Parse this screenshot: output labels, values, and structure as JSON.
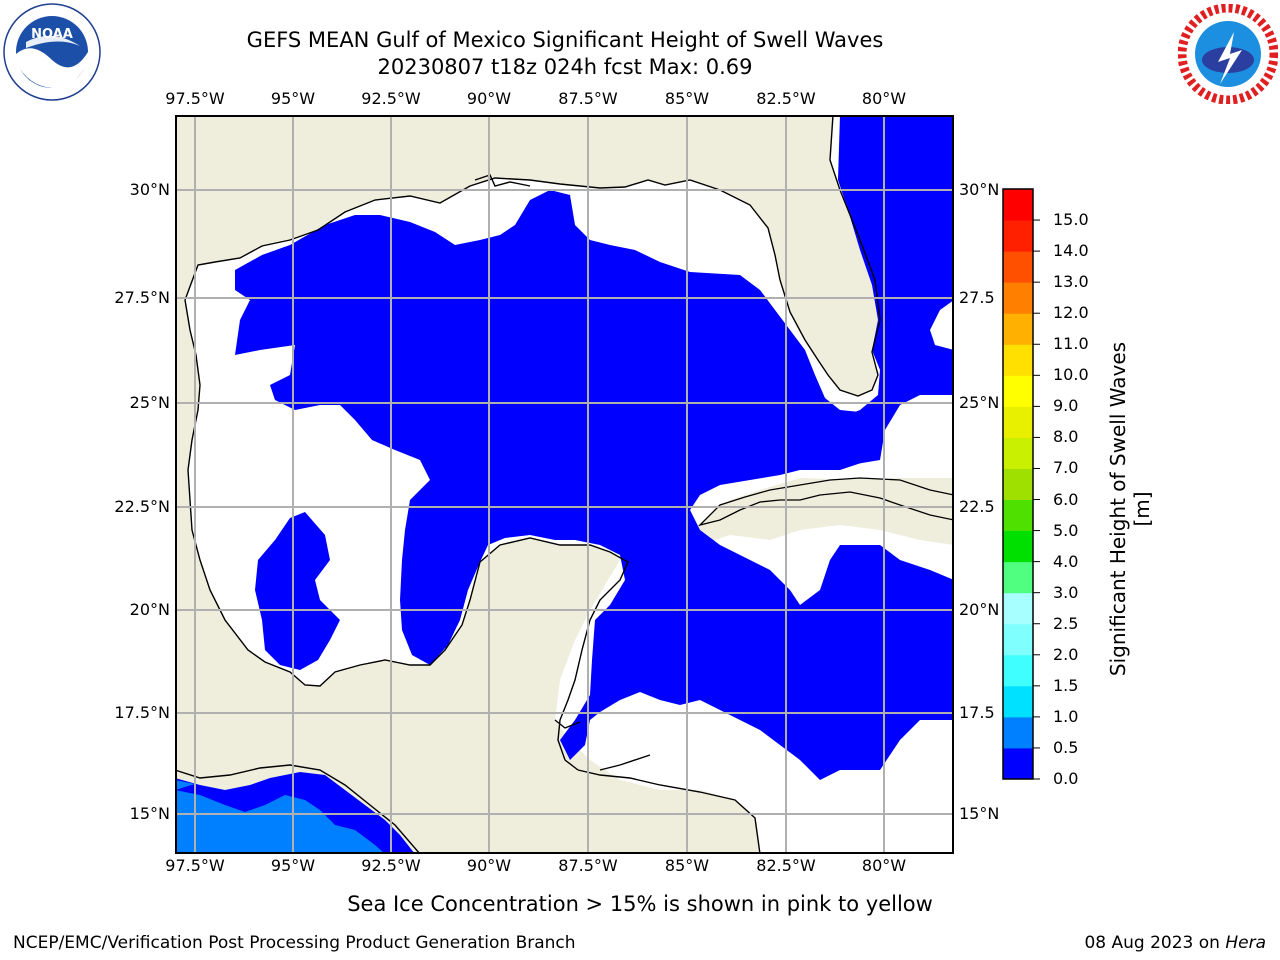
{
  "header": {
    "title_line1": "GEFS MEAN Gulf of Mexico Significant Height of Swell Waves",
    "title_line2": "20230807 t18z 024h fcst   Max: 0.69"
  },
  "logos": {
    "left": {
      "name": "NOAA",
      "text": "NOAA",
      "ring_text": "NATIONAL OCEANIC AND ATMOSPHERIC ADMINISTRATION · U.S. DEPARTMENT OF COMMERCE"
    },
    "right": {
      "name": "National Weather Service",
      "ring_text": "NATIONAL WEATHER SERVICE"
    }
  },
  "map": {
    "lon_labels": [
      "97.5°W",
      "95°W",
      "92.5°W",
      "90°W",
      "87.5°W",
      "85°W",
      "82.5°W",
      "80°W"
    ],
    "lat_labels_left": [
      "30°N",
      "27.5°N",
      "25°N",
      "22.5°N",
      "20°N",
      "17.5°N",
      "15°N"
    ],
    "lat_labels_right": [
      "30°N",
      "27.5",
      "25°N",
      "22.5",
      "20°N",
      "17.5",
      "15°N"
    ],
    "colors": {
      "land": "#efeedc",
      "swell_0_0.5": "#0000ff",
      "swell_0.5_1.0": "#0080ff",
      "no_data": "#ffffff",
      "grid": "#b0b0b0",
      "coast": "#000000"
    }
  },
  "colorbar": {
    "title": "Significant Height of Swell Waves [m]",
    "tick_labels": [
      "0.0",
      "0.5",
      "1.0",
      "1.5",
      "2.0",
      "2.5",
      "3.0",
      "4.0",
      "5.0",
      "6.0",
      "7.0",
      "8.0",
      "9.0",
      "10.0",
      "11.0",
      "12.0",
      "13.0",
      "14.0",
      "15.0"
    ],
    "band_colors": [
      "#0000ff",
      "#0080ff",
      "#00e0ff",
      "#40ffff",
      "#80ffff",
      "#a8ffff",
      "#50ff80",
      "#00e000",
      "#50e000",
      "#a0e000",
      "#c8f000",
      "#e8f000",
      "#ffff00",
      "#ffe000",
      "#ffb000",
      "#ff8000",
      "#ff5000",
      "#ff2000",
      "#ff0000"
    ]
  },
  "notes": {
    "ice": "Sea Ice Concentration > 15% is shown in pink to yellow"
  },
  "footer": {
    "left": "NCEP/EMC/Verification Post Processing Product Generation Branch",
    "date": "08 Aug 2023 on ",
    "machine": "Hera"
  }
}
